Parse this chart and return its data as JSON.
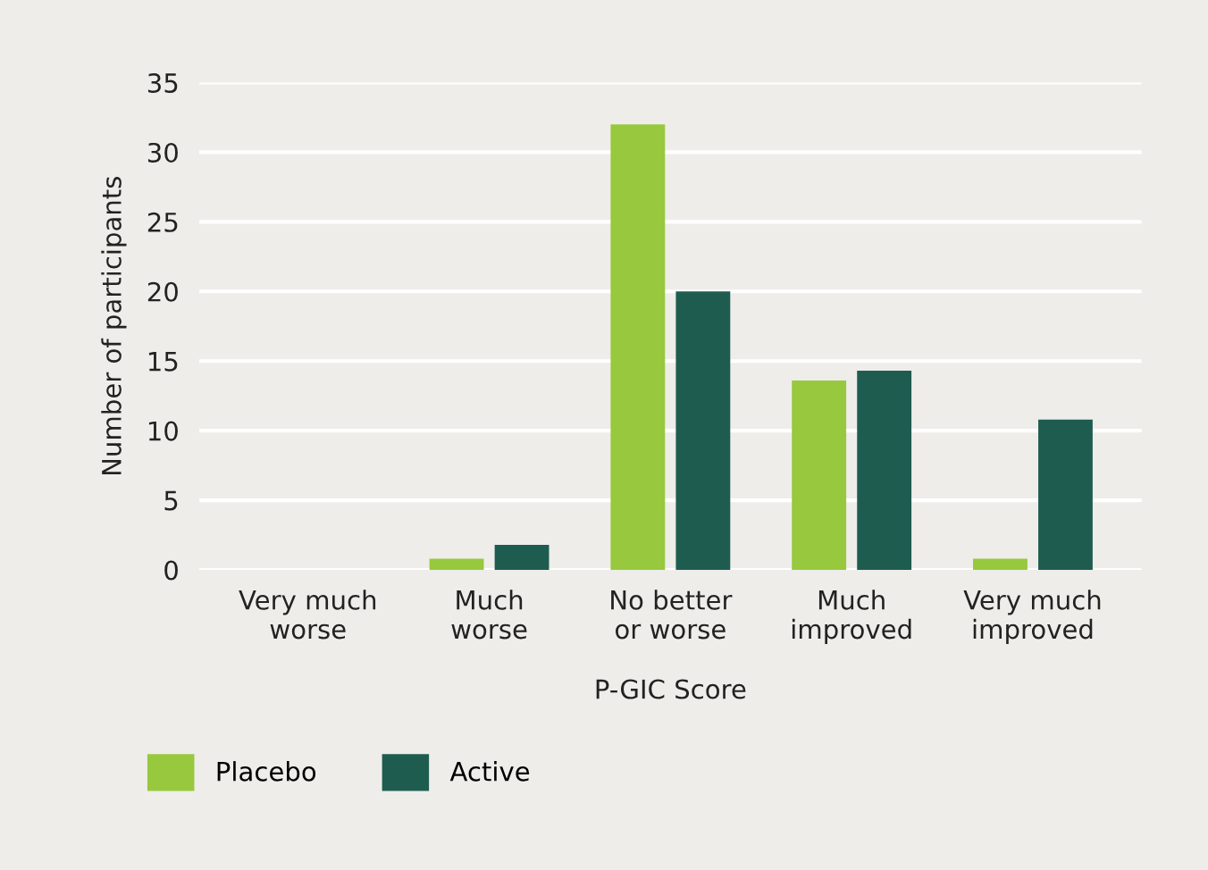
{
  "chart_data": {
    "type": "bar",
    "xlabel": "P-GIC Score",
    "ylabel": "Number of participants",
    "categories": [
      "Very much\nworse",
      "Much\nworse",
      "No better\nor worse",
      "Much\nimproved",
      "Very much\nimproved"
    ],
    "series": [
      {
        "name": "Placebo",
        "color": "#97c83e",
        "values": [
          0,
          0.8,
          32,
          13.6,
          0.8
        ]
      },
      {
        "name": "Active",
        "color": "#1e5c50",
        "values": [
          0,
          1.8,
          20,
          14.3,
          10.8
        ]
      }
    ],
    "ylim": [
      0,
      35
    ],
    "yticks": [
      0,
      5,
      10,
      15,
      20,
      25,
      30,
      35
    ],
    "grid": "y",
    "legend": "bottom left"
  }
}
